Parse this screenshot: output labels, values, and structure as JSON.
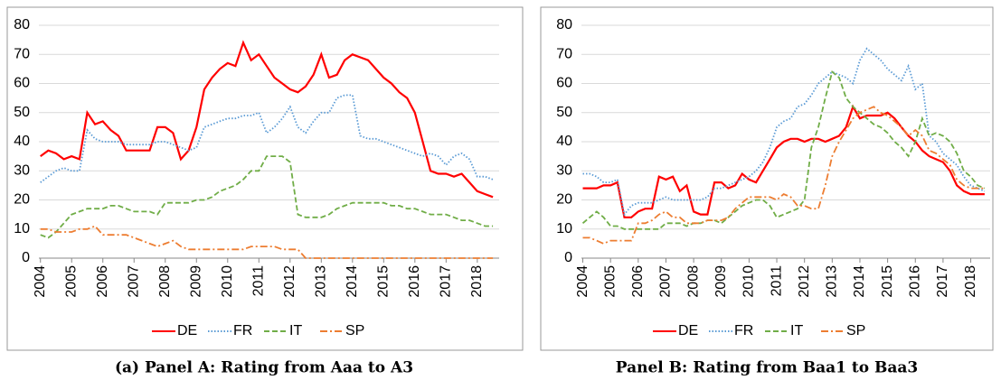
{
  "chart_data": [
    {
      "type": "line",
      "caption": "(a) Panel A: Rating from Aaa to A3",
      "x": [
        2004,
        2004.25,
        2004.5,
        2004.75,
        2005,
        2005.25,
        2005.5,
        2005.75,
        2006,
        2006.25,
        2006.5,
        2006.75,
        2007,
        2007.25,
        2007.5,
        2007.75,
        2008,
        2008.25,
        2008.5,
        2008.75,
        2009,
        2009.25,
        2009.5,
        2009.75,
        2010,
        2010.25,
        2010.5,
        2010.75,
        2011,
        2011.25,
        2011.5,
        2011.75,
        2012,
        2012.25,
        2012.5,
        2012.75,
        2013,
        2013.25,
        2013.5,
        2013.75,
        2014,
        2014.25,
        2014.5,
        2014.75,
        2015,
        2015.25,
        2015.5,
        2015.75,
        2016,
        2016.25,
        2016.5,
        2016.75,
        2017,
        2017.25,
        2017.5,
        2017.75,
        2018,
        2018.25,
        2018.5
      ],
      "xlim": [
        2003.95,
        2018.7
      ],
      "xticks": [
        2004,
        2005,
        2006,
        2007,
        2008,
        2009,
        2010,
        2011,
        2012,
        2013,
        2014,
        2015,
        2016,
        2017,
        2018
      ],
      "ylim": [
        0,
        80
      ],
      "yticks": [
        0,
        10,
        20,
        30,
        40,
        50,
        60,
        70,
        80
      ],
      "grid": true,
      "series": [
        {
          "name": "DE",
          "color": "#ff0000",
          "dash": "solid",
          "values": [
            35,
            37,
            36,
            34,
            35,
            34,
            50,
            46,
            47,
            44,
            42,
            37,
            37,
            37,
            37,
            45,
            45,
            43,
            34,
            37,
            45,
            58,
            62,
            65,
            67,
            66,
            74,
            68,
            70,
            66,
            62,
            60,
            58,
            57,
            59,
            63,
            70,
            62,
            63,
            68,
            70,
            69,
            68,
            65,
            62,
            60,
            57,
            55,
            50,
            40,
            30,
            29,
            29,
            28,
            29,
            26,
            23,
            22,
            21
          ]
        },
        {
          "name": "FR",
          "color": "#5b9bd5",
          "dash": "dotted",
          "values": [
            26,
            28,
            30,
            31,
            30,
            30,
            44,
            41,
            40,
            40,
            40,
            39,
            39,
            39,
            39,
            40,
            40,
            39,
            38,
            37,
            38,
            45,
            46,
            47,
            48,
            48,
            49,
            49,
            50,
            43,
            45,
            48,
            52,
            45,
            43,
            47,
            50,
            50,
            55,
            56,
            56,
            42,
            41,
            41,
            40,
            39,
            38,
            37,
            36,
            35,
            36,
            35,
            32,
            35,
            36,
            34,
            28,
            28,
            27
          ]
        },
        {
          "name": "IT",
          "color": "#70ad47",
          "dash": "dashed",
          "values": [
            8,
            7,
            9,
            12,
            15,
            16,
            17,
            17,
            17,
            18,
            18,
            17,
            16,
            16,
            16,
            15,
            19,
            19,
            19,
            19,
            20,
            20,
            21,
            23,
            24,
            25,
            27,
            30,
            30,
            35,
            35,
            35,
            33,
            15,
            14,
            14,
            14,
            15,
            17,
            18,
            19,
            19,
            19,
            19,
            19,
            18,
            18,
            17,
            17,
            16,
            15,
            15,
            15,
            14,
            13,
            13,
            12,
            11,
            11
          ]
        },
        {
          "name": "SP",
          "color": "#ed7d31",
          "dash": "dashdot",
          "values": [
            10,
            10,
            9,
            9,
            9,
            10,
            10,
            11,
            8,
            8,
            8,
            8,
            7,
            6,
            5,
            4,
            5,
            6,
            4,
            3,
            3,
            3,
            3,
            3,
            3,
            3,
            3,
            4,
            4,
            4,
            4,
            3,
            3,
            3,
            0,
            0,
            0,
            0,
            0,
            0,
            0,
            0,
            0,
            0,
            0,
            0,
            0,
            0,
            0,
            0,
            0,
            0,
            0,
            0,
            0,
            0,
            0,
            0,
            0
          ]
        }
      ]
    },
    {
      "type": "line",
      "caption": "Panel B: Rating from Baa1 to Baa3",
      "x": [
        2004,
        2004.25,
        2004.5,
        2004.75,
        2005,
        2005.25,
        2005.5,
        2005.75,
        2006,
        2006.25,
        2006.5,
        2006.75,
        2007,
        2007.25,
        2007.5,
        2007.75,
        2008,
        2008.25,
        2008.5,
        2008.75,
        2009,
        2009.25,
        2009.5,
        2009.75,
        2010,
        2010.25,
        2010.5,
        2010.75,
        2011,
        2011.25,
        2011.5,
        2011.75,
        2012,
        2012.25,
        2012.5,
        2012.75,
        2013,
        2013.25,
        2013.5,
        2013.75,
        2014,
        2014.25,
        2014.5,
        2014.75,
        2015,
        2015.25,
        2015.5,
        2015.75,
        2016,
        2016.25,
        2016.5,
        2016.75,
        2017,
        2017.25,
        2017.5,
        2017.75,
        2018,
        2018.25,
        2018.5
      ],
      "xlim": [
        2003.95,
        2018.7
      ],
      "xticks": [
        2004,
        2005,
        2006,
        2007,
        2008,
        2009,
        2010,
        2011,
        2012,
        2013,
        2014,
        2015,
        2016,
        2017,
        2018
      ],
      "ylim": [
        0,
        80
      ],
      "yticks": [
        0,
        10,
        20,
        30,
        40,
        50,
        60,
        70,
        80
      ],
      "grid": true,
      "series": [
        {
          "name": "DE",
          "color": "#ff0000",
          "dash": "solid",
          "values": [
            24,
            24,
            24,
            25,
            25,
            26,
            14,
            14,
            16,
            17,
            17,
            28,
            27,
            28,
            23,
            25,
            16,
            15,
            15,
            26,
            26,
            24,
            25,
            29,
            27,
            26,
            30,
            34,
            38,
            40,
            41,
            41,
            40,
            41,
            41,
            40,
            41,
            42,
            45,
            52,
            48,
            49,
            49,
            49,
            50,
            48,
            45,
            42,
            40,
            37,
            35,
            34,
            33,
            30,
            25,
            23,
            22,
            22,
            22
          ]
        },
        {
          "name": "FR",
          "color": "#5b9bd5",
          "dash": "dotted",
          "values": [
            29,
            29,
            28,
            26,
            26,
            27,
            15,
            18,
            19,
            19,
            19,
            20,
            21,
            20,
            20,
            20,
            20,
            20,
            21,
            24,
            24,
            25,
            26,
            27,
            28,
            30,
            33,
            38,
            45,
            47,
            48,
            52,
            53,
            56,
            60,
            62,
            64,
            63,
            62,
            60,
            68,
            72,
            70,
            68,
            65,
            63,
            61,
            66,
            58,
            60,
            42,
            40,
            36,
            34,
            32,
            28,
            25,
            24,
            23
          ]
        },
        {
          "name": "IT",
          "color": "#70ad47",
          "dash": "dashed",
          "values": [
            12,
            14,
            16,
            14,
            11,
            11,
            10,
            10,
            10,
            10,
            10,
            10,
            12,
            12,
            12,
            11,
            12,
            12,
            13,
            13,
            12,
            14,
            16,
            18,
            19,
            20,
            20,
            18,
            14,
            15,
            16,
            17,
            20,
            38,
            45,
            55,
            64,
            62,
            55,
            52,
            50,
            48,
            46,
            45,
            43,
            40,
            38,
            35,
            40,
            48,
            42,
            43,
            42,
            40,
            36,
            30,
            28,
            25,
            24
          ]
        },
        {
          "name": "SP",
          "color": "#ed7d31",
          "dash": "dashdot",
          "values": [
            7,
            7,
            6,
            5,
            6,
            6,
            6,
            6,
            12,
            12,
            13,
            15,
            16,
            14,
            14,
            12,
            12,
            12,
            13,
            13,
            13,
            14,
            17,
            19,
            21,
            21,
            21,
            21,
            20,
            22,
            21,
            18,
            18,
            17,
            17,
            25,
            35,
            40,
            44,
            48,
            50,
            51,
            52,
            50,
            49,
            47,
            45,
            42,
            44,
            42,
            37,
            36,
            34,
            32,
            27,
            25,
            24,
            24,
            24
          ]
        }
      ]
    }
  ]
}
